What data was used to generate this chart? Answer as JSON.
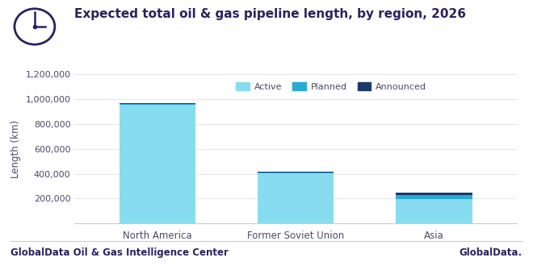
{
  "categories": [
    "North America",
    "Former Soviet Union",
    "Asia"
  ],
  "active": [
    955000,
    405000,
    195000
  ],
  "planned": [
    8000,
    8000,
    35000
  ],
  "announced": [
    3000,
    1000,
    18000
  ],
  "color_active": "#87DDEF",
  "color_planned": "#29ABD4",
  "color_announced": "#1B3A6B",
  "title": "Expected total oil & gas pipeline length, by region, 2026",
  "ylabel": "Length (km)",
  "ylim": [
    0,
    1200000
  ],
  "yticks": [
    0,
    200000,
    400000,
    600000,
    800000,
    1000000,
    1200000
  ],
  "legend_labels": [
    "Active",
    "Planned",
    "Announced"
  ],
  "footer_left": "GlobalData Oil & Gas Intelligence Center",
  "background_color": "#ffffff",
  "title_color": "#2d2060",
  "axis_color": "#4a4a6a",
  "title_fontsize": 11,
  "footer_fontsize": 8.5,
  "bar_positions": [
    0.22,
    0.52,
    0.78
  ],
  "bar_width": 0.16
}
